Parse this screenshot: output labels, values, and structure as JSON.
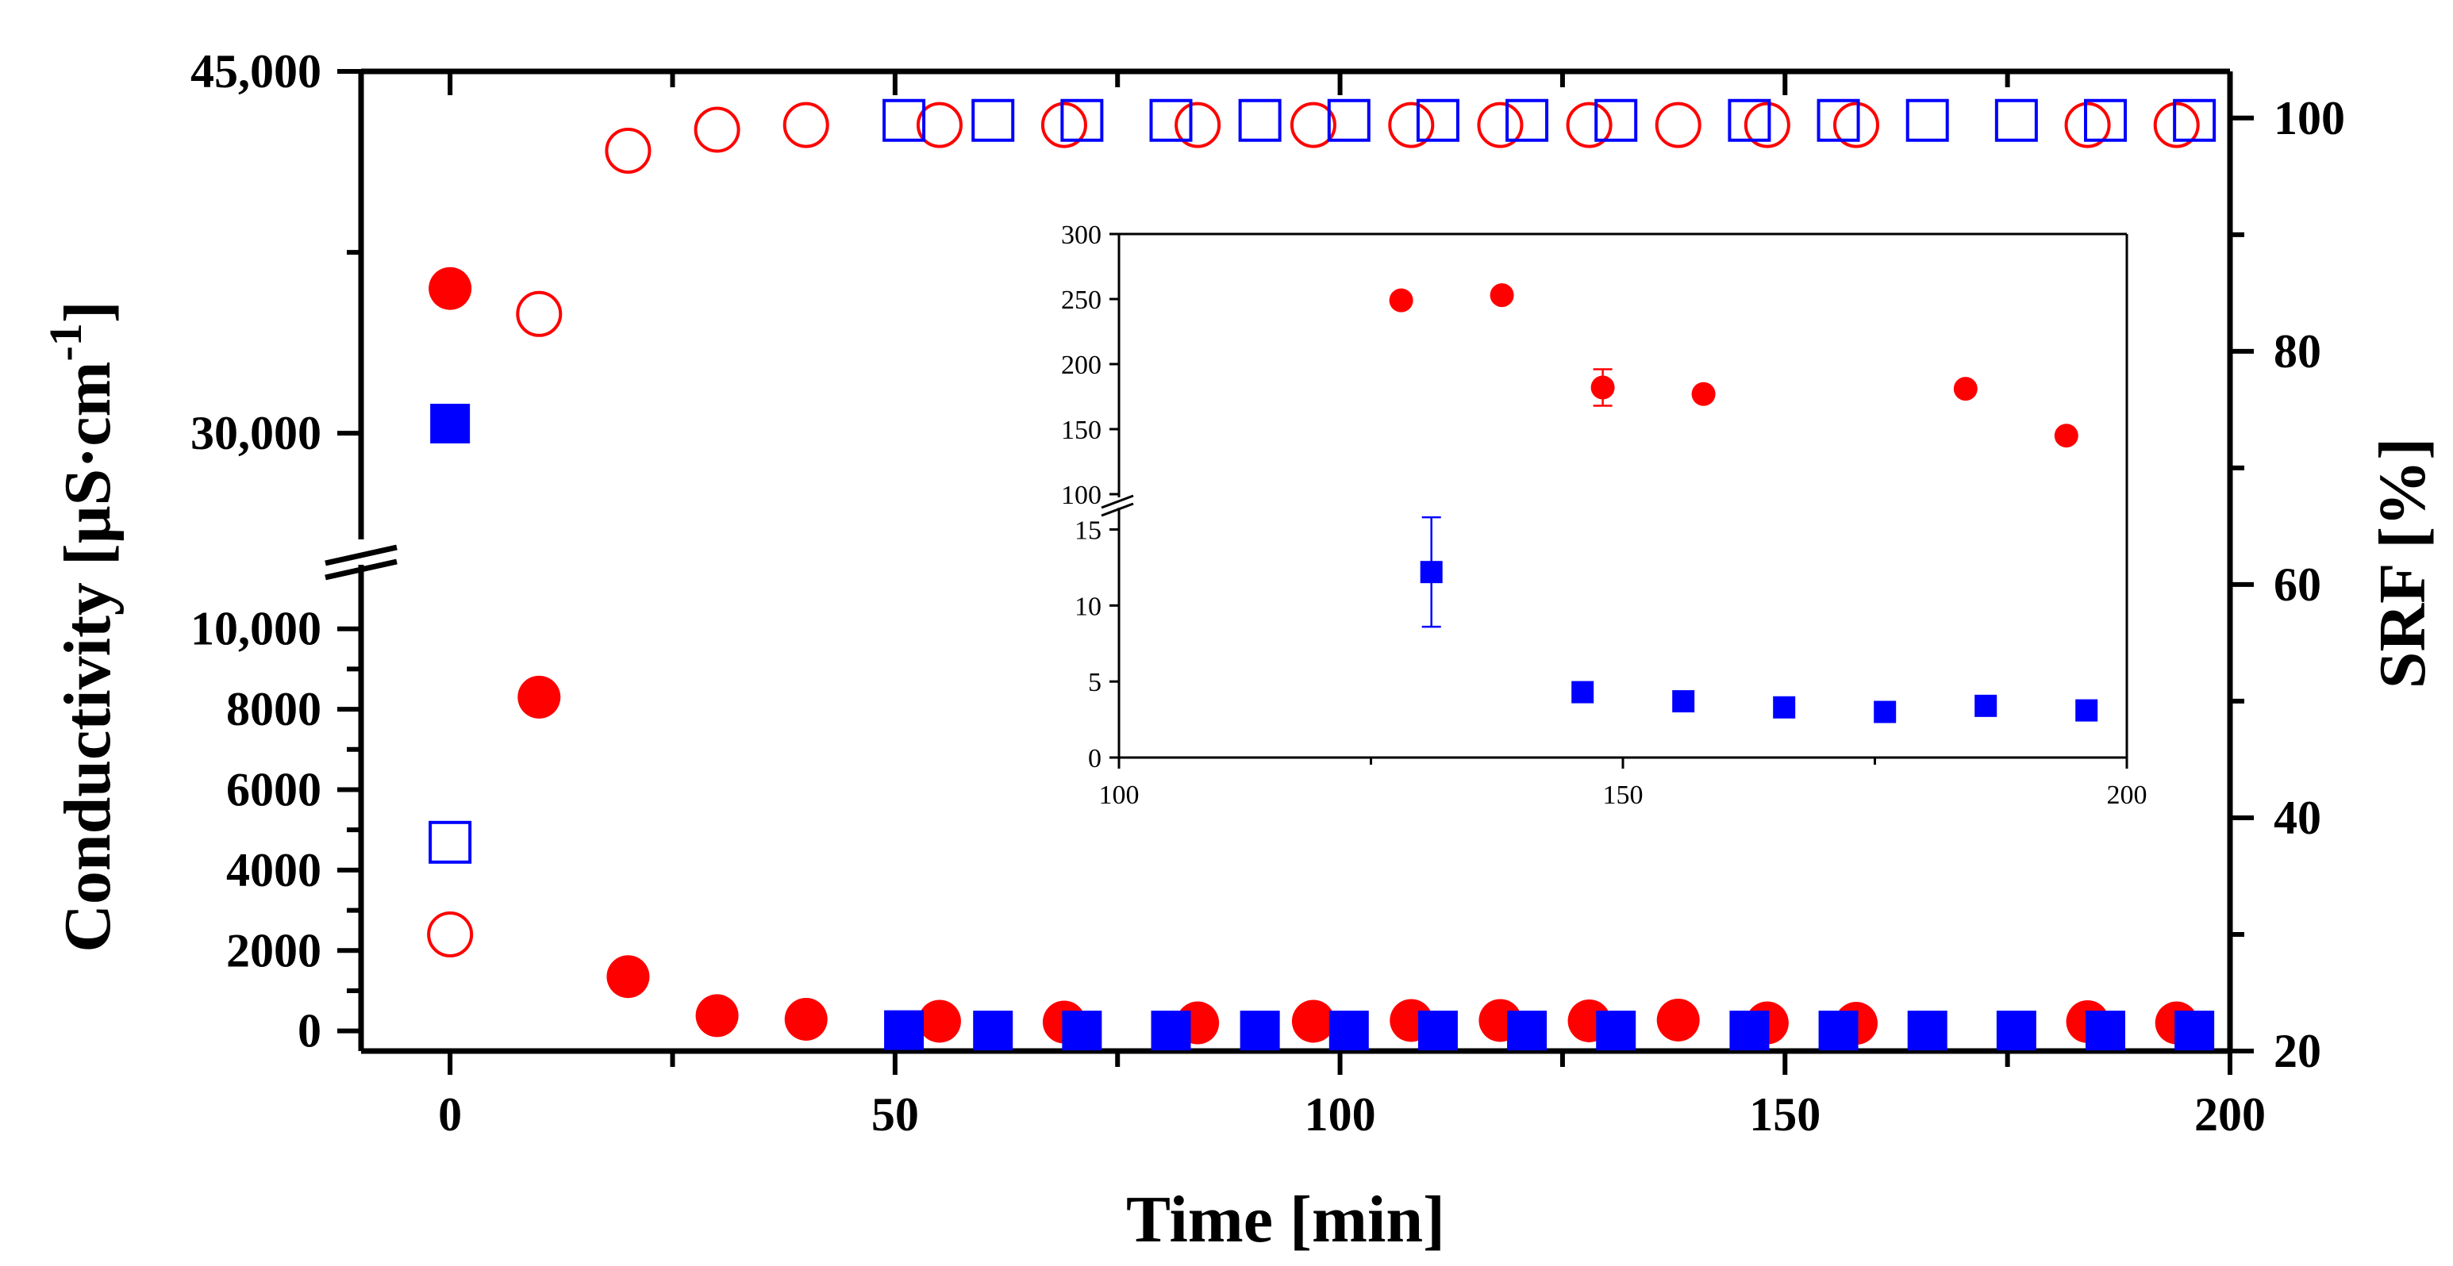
{
  "chart_data": [
    {
      "type": "scatter",
      "xlabel": "Time [min]",
      "ylabel": "Conductivity [μS·cm⁻¹]",
      "ylabel_parts": {
        "main": "Conductivity [μS·cm",
        "sup": "-1",
        "close": "]"
      },
      "y2label": "SRF [%]",
      "xlim": [
        -10,
        200
      ],
      "ylim_lower": [
        -500,
        11000
      ],
      "ylim_upper": [
        28000,
        45000
      ],
      "y2lim": [
        20,
        104
      ],
      "axis_break": "between 11,000 and 28,000",
      "x_ticks": [
        {
          "value": 0,
          "label": "0"
        },
        {
          "value": 50,
          "label": "50"
        },
        {
          "value": 100,
          "label": "100"
        },
        {
          "value": 150,
          "label": "150"
        },
        {
          "value": 200,
          "label": "200"
        }
      ],
      "y_ticks_lower": [
        {
          "value": 0,
          "label": "0"
        },
        {
          "value": 2000,
          "label": "2000"
        },
        {
          "value": 4000,
          "label": "4000"
        },
        {
          "value": 6000,
          "label": "6000"
        },
        {
          "value": 8000,
          "label": "8000"
        },
        {
          "value": 10000,
          "label": "10,000"
        }
      ],
      "y_ticks_upper": [
        {
          "value": 30000,
          "label": "30,000"
        },
        {
          "value": 45000,
          "label": "45,000"
        }
      ],
      "y2_ticks": [
        {
          "value": 20,
          "label": "20"
        },
        {
          "value": 40,
          "label": "40"
        },
        {
          "value": 60,
          "label": "60"
        },
        {
          "value": 80,
          "label": "80"
        },
        {
          "value": 100,
          "label": "100"
        }
      ],
      "series": [
        {
          "marker": "filled-circle",
          "color": "#ff0000",
          "axis": "left",
          "points": [
            [
              0,
              36000
            ],
            [
              10,
              8300
            ],
            [
              20,
              1350
            ],
            [
              30,
              380
            ],
            [
              40,
              290
            ],
            [
              55,
              240
            ],
            [
              69,
              220
            ],
            [
              84,
              200
            ],
            [
              97,
              240
            ],
            [
              108,
              260
            ],
            [
              118,
              260
            ],
            [
              128,
              250
            ],
            [
              138,
              270
            ],
            [
              148,
              200
            ],
            [
              158,
              190
            ],
            [
              184,
              230
            ],
            [
              194,
              200
            ]
          ]
        },
        {
          "marker": "filled-square",
          "color": "#0000ff",
          "axis": "left",
          "points": [
            [
              0,
              30400
            ],
            [
              51,
              20
            ],
            [
              61,
              10
            ],
            [
              71,
              10
            ],
            [
              81,
              10
            ],
            [
              91,
              10
            ],
            [
              101,
              10
            ],
            [
              111,
              10
            ],
            [
              121,
              10
            ],
            [
              131,
              10
            ],
            [
              146,
              10
            ],
            [
              156,
              10
            ],
            [
              166,
              10
            ],
            [
              176,
              10
            ],
            [
              186,
              10
            ],
            [
              196,
              10
            ]
          ]
        },
        {
          "marker": "open-circle",
          "color": "#ff0000",
          "axis": "right",
          "points": [
            [
              0,
              30
            ],
            [
              10,
              83.2
            ],
            [
              20,
              97.2
            ],
            [
              30,
              99
            ],
            [
              40,
              99.4
            ],
            [
              55,
              99.4
            ],
            [
              69,
              99.4
            ],
            [
              84,
              99.4
            ],
            [
              97,
              99.4
            ],
            [
              108,
              99.4
            ],
            [
              118,
              99.4
            ],
            [
              128,
              99.4
            ],
            [
              138,
              99.4
            ],
            [
              148,
              99.4
            ],
            [
              158,
              99.4
            ],
            [
              184,
              99.4
            ],
            [
              194,
              99.4
            ]
          ]
        },
        {
          "marker": "open-square",
          "color": "#0000ff",
          "axis": "right",
          "points": [
            [
              0,
              37.9
            ],
            [
              51,
              99.8
            ],
            [
              61,
              99.8
            ],
            [
              71,
              99.8
            ],
            [
              81,
              99.8
            ],
            [
              91,
              99.8
            ],
            [
              101,
              99.8
            ],
            [
              111,
              99.8
            ],
            [
              121,
              99.8
            ],
            [
              131,
              99.8
            ],
            [
              146,
              99.8
            ],
            [
              156,
              99.8
            ],
            [
              166,
              99.8
            ],
            [
              176,
              99.8
            ],
            [
              186,
              99.8
            ],
            [
              196,
              99.8
            ]
          ]
        }
      ]
    },
    {
      "type": "scatter",
      "role": "inset",
      "xlim": [
        100,
        200
      ],
      "ylim_lower": [
        0,
        18
      ],
      "ylim_upper": [
        100,
        300
      ],
      "axis_break": "between 18 and 100",
      "x_ticks": [
        {
          "value": 100,
          "label": "100"
        },
        {
          "value": 150,
          "label": "150"
        },
        {
          "value": 200,
          "label": "200"
        }
      ],
      "y_ticks_lower": [
        {
          "value": 0,
          "label": "0"
        },
        {
          "value": 5,
          "label": "5"
        },
        {
          "value": 10,
          "label": "10"
        },
        {
          "value": 15,
          "label": "15"
        }
      ],
      "y_ticks_upper": [
        {
          "value": 100,
          "label": "100"
        },
        {
          "value": 150,
          "label": "150"
        },
        {
          "value": 200,
          "label": "200"
        },
        {
          "value": 250,
          "label": "250"
        },
        {
          "value": 300,
          "label": "300"
        }
      ],
      "series": [
        {
          "marker": "filled-circle",
          "color": "#ff0000",
          "points": [
            [
              128,
              249
            ],
            [
              138,
              253
            ],
            [
              148,
              182
            ],
            [
              158,
              177
            ],
            [
              184,
              181
            ],
            [
              194,
              145
            ]
          ],
          "error_bars": [
            {
              "x": 148,
              "y": 182,
              "err": 14
            }
          ]
        },
        {
          "marker": "filled-square",
          "color": "#0000ff",
          "points": [
            [
              131,
              12.2
            ],
            [
              146,
              4.3
            ],
            [
              156,
              3.7
            ],
            [
              166,
              3.3
            ],
            [
              176,
              3.0
            ],
            [
              186,
              3.4
            ],
            [
              196,
              3.1
            ]
          ],
          "error_bars": [
            {
              "x": 131,
              "y": 12.2,
              "err": 3.6
            }
          ]
        }
      ]
    }
  ]
}
